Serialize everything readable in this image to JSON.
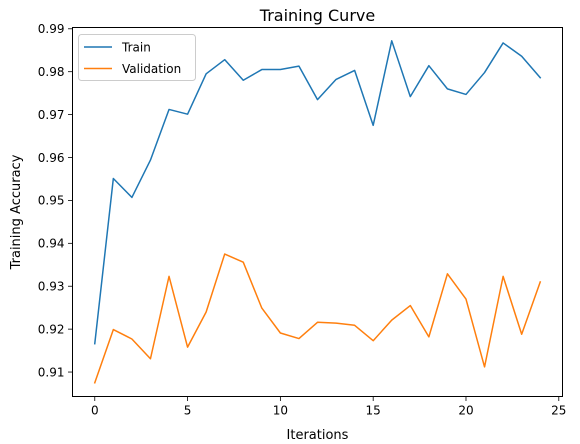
{
  "chart_data": {
    "type": "line",
    "title": "Training Curve",
    "xlabel": "Iterations",
    "ylabel": "Training Accuracy",
    "xlim": [
      -1.2,
      25.2
    ],
    "ylim": [
      0.9043,
      0.9903
    ],
    "x_ticks": [
      0,
      5,
      10,
      15,
      20,
      25
    ],
    "y_ticks": [
      0.91,
      0.92,
      0.93,
      0.94,
      0.95,
      0.96,
      0.97,
      0.98,
      0.99
    ],
    "grid": false,
    "legend_position": "top-left",
    "x": [
      0,
      1,
      2,
      3,
      4,
      5,
      6,
      7,
      8,
      9,
      10,
      11,
      12,
      13,
      14,
      15,
      16,
      17,
      18,
      19,
      20,
      21,
      22,
      23,
      24
    ],
    "series": [
      {
        "name": "Train",
        "color": "#1f77b4",
        "values": [
          0.9166,
          0.9551,
          0.9507,
          0.9594,
          0.9712,
          0.9701,
          0.9795,
          0.9828,
          0.978,
          0.9805,
          0.9805,
          0.9813,
          0.9735,
          0.9782,
          0.9803,
          0.9675,
          0.9872,
          0.9742,
          0.9814,
          0.976,
          0.9747,
          0.9798,
          0.9867,
          0.9836,
          0.9786
        ]
      },
      {
        "name": "Validation",
        "color": "#ff7f0e",
        "values": [
          0.9075,
          0.9199,
          0.9177,
          0.9131,
          0.9323,
          0.9158,
          0.924,
          0.9375,
          0.9356,
          0.9249,
          0.9191,
          0.9178,
          0.9216,
          0.9214,
          0.9209,
          0.9173,
          0.9221,
          0.9255,
          0.9182,
          0.9329,
          0.927,
          0.9112,
          0.9323,
          0.9188,
          0.931
        ]
      }
    ]
  }
}
